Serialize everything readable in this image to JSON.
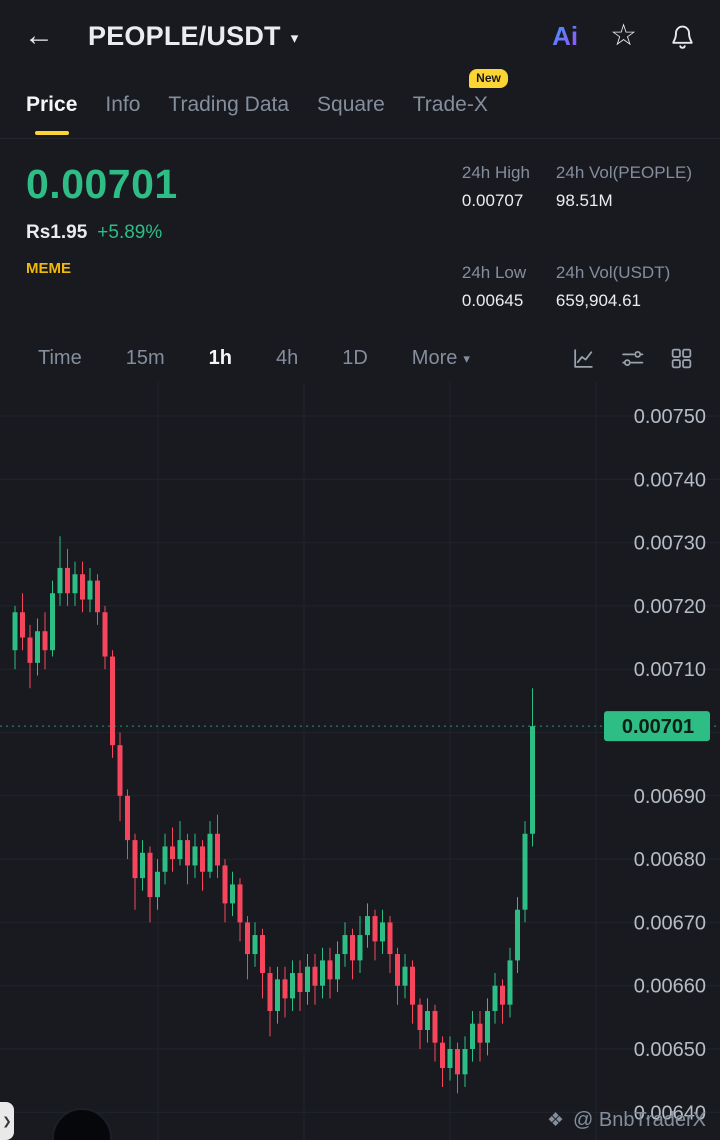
{
  "header": {
    "title": "PEOPLE/USDT",
    "back_glyph": "←",
    "caret_glyph": "▾",
    "ai_label": "Ai",
    "star_glyph": "☆"
  },
  "nav_tabs": {
    "items": [
      {
        "label": "Price",
        "active": true
      },
      {
        "label": "Info",
        "active": false
      },
      {
        "label": "Trading Data",
        "active": false
      },
      {
        "label": "Square",
        "active": false
      },
      {
        "label": "Trade-X",
        "active": false
      }
    ],
    "new_badge": "New"
  },
  "price_panel": {
    "price": "0.00701",
    "fiat": "Rs1.95",
    "change": "+5.89%",
    "tag": "MEME",
    "stats": [
      {
        "label": "24h High",
        "value": "0.00707"
      },
      {
        "label": "24h Vol(PEOPLE)",
        "value": "98.51M"
      },
      {
        "label": "24h Low",
        "value": "0.00645"
      },
      {
        "label": "24h Vol(USDT)",
        "value": "659,904.61"
      }
    ]
  },
  "interval_bar": {
    "items": [
      "Time",
      "15m",
      "1h",
      "4h",
      "1D"
    ],
    "active": "1h",
    "more_label": "More",
    "more_caret": "▾"
  },
  "footer": {
    "watermark": "@ BnbTraderX",
    "watermark_icon": "❖"
  },
  "chart_data": {
    "type": "candlestick",
    "pair": "PEOPLE/USDT",
    "interval": "1h",
    "last_price": 0.00701,
    "up_color": "#2ebd85",
    "down_color": "#f6465d",
    "price_axis": {
      "ticks": [
        0.0075,
        0.0074,
        0.0073,
        0.0072,
        0.0071,
        0.007,
        0.0069,
        0.0068,
        0.0067,
        0.0066,
        0.0065,
        0.0064
      ],
      "hidden_tick": 0.007
    },
    "stats": {
      "high_24h": 0.00707,
      "low_24h": 0.00645,
      "vol_people": "98.51M",
      "vol_usdt": "659,904.61",
      "change_pct": 5.89
    },
    "candles": [
      [
        0.00713,
        0.0072,
        0.0071,
        0.00719
      ],
      [
        0.00719,
        0.00722,
        0.00713,
        0.00715
      ],
      [
        0.00715,
        0.00717,
        0.00707,
        0.00711
      ],
      [
        0.00711,
        0.00718,
        0.00709,
        0.00716
      ],
      [
        0.00716,
        0.00719,
        0.0071,
        0.00713
      ],
      [
        0.00713,
        0.00724,
        0.00712,
        0.00722
      ],
      [
        0.00722,
        0.00731,
        0.0072,
        0.00726
      ],
      [
        0.00726,
        0.00729,
        0.0072,
        0.00722
      ],
      [
        0.00722,
        0.00727,
        0.0072,
        0.00725
      ],
      [
        0.00725,
        0.00727,
        0.00719,
        0.00721
      ],
      [
        0.00721,
        0.00726,
        0.00719,
        0.00724
      ],
      [
        0.00724,
        0.00725,
        0.00717,
        0.00719
      ],
      [
        0.00719,
        0.0072,
        0.0071,
        0.00712
      ],
      [
        0.00712,
        0.00713,
        0.00696,
        0.00698
      ],
      [
        0.00698,
        0.007,
        0.00686,
        0.0069
      ],
      [
        0.0069,
        0.00691,
        0.0068,
        0.00683
      ],
      [
        0.00683,
        0.00684,
        0.00672,
        0.00677
      ],
      [
        0.00677,
        0.00683,
        0.00675,
        0.00681
      ],
      [
        0.00681,
        0.00682,
        0.0067,
        0.00674
      ],
      [
        0.00674,
        0.0068,
        0.00672,
        0.00678
      ],
      [
        0.00678,
        0.00684,
        0.00676,
        0.00682
      ],
      [
        0.00682,
        0.00685,
        0.00678,
        0.0068
      ],
      [
        0.0068,
        0.00686,
        0.00679,
        0.00683
      ],
      [
        0.00683,
        0.00684,
        0.00676,
        0.00679
      ],
      [
        0.00679,
        0.00684,
        0.00677,
        0.00682
      ],
      [
        0.00682,
        0.00683,
        0.00675,
        0.00678
      ],
      [
        0.00678,
        0.00686,
        0.00677,
        0.00684
      ],
      [
        0.00684,
        0.00687,
        0.00677,
        0.00679
      ],
      [
        0.00679,
        0.0068,
        0.0067,
        0.00673
      ],
      [
        0.00673,
        0.00678,
        0.00671,
        0.00676
      ],
      [
        0.00676,
        0.00677,
        0.00667,
        0.0067
      ],
      [
        0.0067,
        0.00671,
        0.00661,
        0.00665
      ],
      [
        0.00665,
        0.0067,
        0.00663,
        0.00668
      ],
      [
        0.00668,
        0.00669,
        0.00658,
        0.00662
      ],
      [
        0.00662,
        0.00663,
        0.00652,
        0.00656
      ],
      [
        0.00656,
        0.00663,
        0.00654,
        0.00661
      ],
      [
        0.00661,
        0.00663,
        0.00655,
        0.00658
      ],
      [
        0.00658,
        0.00664,
        0.00656,
        0.00662
      ],
      [
        0.00662,
        0.00664,
        0.00656,
        0.00659
      ],
      [
        0.00659,
        0.00665,
        0.00657,
        0.00663
      ],
      [
        0.00663,
        0.00665,
        0.00657,
        0.0066
      ],
      [
        0.0066,
        0.00666,
        0.00658,
        0.00664
      ],
      [
        0.00664,
        0.00666,
        0.00658,
        0.00661
      ],
      [
        0.00661,
        0.00667,
        0.00659,
        0.00665
      ],
      [
        0.00665,
        0.0067,
        0.00663,
        0.00668
      ],
      [
        0.00668,
        0.00669,
        0.00661,
        0.00664
      ],
      [
        0.00664,
        0.00671,
        0.00662,
        0.00668
      ],
      [
        0.00668,
        0.00673,
        0.00666,
        0.00671
      ],
      [
        0.00671,
        0.00672,
        0.00664,
        0.00667
      ],
      [
        0.00667,
        0.00672,
        0.00665,
        0.0067
      ],
      [
        0.0067,
        0.00671,
        0.00662,
        0.00665
      ],
      [
        0.00665,
        0.00666,
        0.00657,
        0.0066
      ],
      [
        0.0066,
        0.00665,
        0.00658,
        0.00663
      ],
      [
        0.00663,
        0.00664,
        0.00654,
        0.00657
      ],
      [
        0.00657,
        0.00658,
        0.0065,
        0.00653
      ],
      [
        0.00653,
        0.00658,
        0.00651,
        0.00656
      ],
      [
        0.00656,
        0.00657,
        0.00648,
        0.00651
      ],
      [
        0.00651,
        0.00652,
        0.00644,
        0.00647
      ],
      [
        0.00647,
        0.00652,
        0.00645,
        0.0065
      ],
      [
        0.0065,
        0.00651,
        0.00643,
        0.00646
      ],
      [
        0.00646,
        0.00652,
        0.00644,
        0.0065
      ],
      [
        0.0065,
        0.00656,
        0.00648,
        0.00654
      ],
      [
        0.00654,
        0.00656,
        0.00648,
        0.00651
      ],
      [
        0.00651,
        0.00658,
        0.00649,
        0.00656
      ],
      [
        0.00656,
        0.00662,
        0.00654,
        0.0066
      ],
      [
        0.0066,
        0.00661,
        0.00654,
        0.00657
      ],
      [
        0.00657,
        0.00666,
        0.00655,
        0.00664
      ],
      [
        0.00664,
        0.00674,
        0.00662,
        0.00672
      ],
      [
        0.00672,
        0.00686,
        0.0067,
        0.00684
      ],
      [
        0.00684,
        0.00707,
        0.00682,
        0.00701
      ]
    ]
  }
}
